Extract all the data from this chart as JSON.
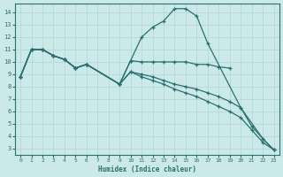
{
  "xlabel": "Humidex (Indice chaleur)",
  "bg_color": "#cce9e9",
  "line_color": "#2a7070",
  "grid_color": "#b0d4d4",
  "xlim": [
    -0.5,
    23.5
  ],
  "ylim": [
    2.5,
    14.7
  ],
  "xticks": [
    0,
    1,
    2,
    3,
    4,
    5,
    6,
    7,
    8,
    9,
    10,
    11,
    12,
    13,
    14,
    15,
    16,
    17,
    18,
    19,
    20,
    21,
    22,
    23
  ],
  "yticks": [
    3,
    4,
    5,
    6,
    7,
    8,
    9,
    10,
    11,
    12,
    13,
    14
  ],
  "lines": [
    {
      "x": [
        0,
        1,
        2,
        3,
        4,
        5,
        6,
        9,
        10,
        11,
        12,
        13,
        14,
        15,
        16,
        17,
        20,
        22,
        23
      ],
      "y": [
        8.8,
        11.0,
        11.0,
        10.5,
        10.2,
        9.5,
        9.8,
        8.2,
        10.1,
        12.0,
        12.8,
        13.3,
        14.3,
        14.3,
        13.7,
        11.5,
        6.3,
        3.8,
        2.9
      ]
    },
    {
      "x": [
        0,
        1,
        2,
        3,
        4,
        5,
        6,
        9,
        10,
        11,
        12,
        13,
        14,
        15,
        16,
        17,
        18,
        19
      ],
      "y": [
        8.8,
        11.0,
        11.0,
        10.5,
        10.2,
        9.5,
        9.8,
        8.2,
        10.1,
        10.0,
        10.0,
        10.0,
        10.0,
        10.0,
        9.8,
        9.8,
        9.6,
        9.5
      ]
    },
    {
      "x": [
        0,
        1,
        2,
        3,
        4,
        5,
        6,
        9,
        10,
        11,
        12,
        13,
        14,
        15,
        16,
        17,
        18,
        19,
        20,
        21,
        22,
        23
      ],
      "y": [
        8.8,
        11.0,
        11.0,
        10.5,
        10.2,
        9.5,
        9.8,
        8.2,
        9.2,
        9.0,
        8.8,
        8.5,
        8.2,
        8.0,
        7.8,
        7.5,
        7.2,
        6.8,
        6.3,
        4.8,
        3.8,
        2.9
      ]
    },
    {
      "x": [
        0,
        1,
        2,
        3,
        4,
        5,
        6,
        9,
        10,
        11,
        12,
        13,
        14,
        15,
        16,
        17,
        18,
        19,
        20,
        21,
        22,
        23
      ],
      "y": [
        8.8,
        11.0,
        11.0,
        10.5,
        10.2,
        9.5,
        9.8,
        8.2,
        9.2,
        8.8,
        8.5,
        8.2,
        7.8,
        7.5,
        7.2,
        6.8,
        6.4,
        6.0,
        5.5,
        4.5,
        3.5,
        2.9
      ]
    }
  ]
}
